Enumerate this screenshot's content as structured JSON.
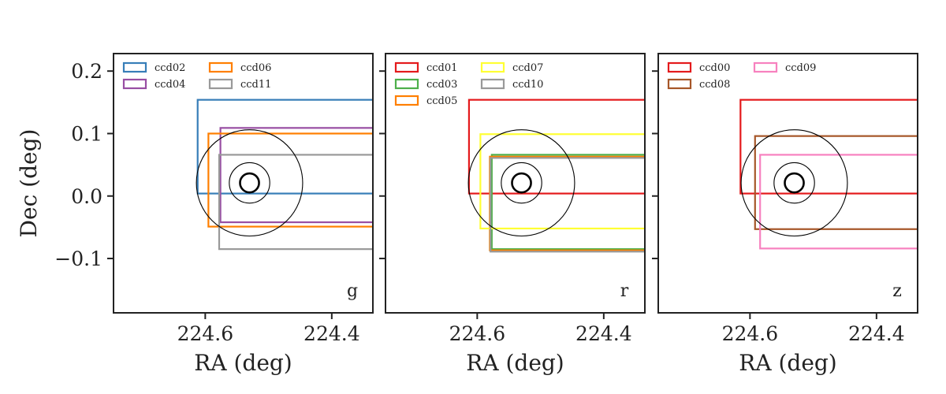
{
  "chart_data": [
    {
      "type": "footprint",
      "band": "g",
      "xlabel": "RA (deg)",
      "ylabel": "Dec (deg)",
      "xlim": [
        224.745,
        224.335
      ],
      "ylim": [
        -0.187,
        0.228
      ],
      "x_ticks": [
        224.6,
        224.4
      ],
      "x_tick_labels": [
        "224.6",
        "224.4"
      ],
      "y_ticks": [
        0.2,
        0.1,
        0.0,
        -0.1
      ],
      "y_tick_labels": [
        "0.2",
        "0.1",
        "0.0",
        "−0.1"
      ],
      "target": {
        "ra": 224.53,
        "dec": 0.021,
        "radii_deg": [
          0.015,
          0.032,
          0.084
        ]
      },
      "legend_position": "top-left",
      "ccds": [
        {
          "name": "ccd02",
          "color": "#377eb8",
          "ra_max": 224.612,
          "dec_min": 0.004,
          "dec_max": 0.154
        },
        {
          "name": "ccd04",
          "color": "#984ea3",
          "ra_max": 224.576,
          "dec_min": -0.042,
          "dec_max": 0.109
        },
        {
          "name": "ccd06",
          "color": "#ff7f00",
          "ra_max": 224.595,
          "dec_min": -0.049,
          "dec_max": 0.1
        },
        {
          "name": "ccd11",
          "color": "#999999",
          "ra_max": 224.578,
          "dec_min": -0.085,
          "dec_max": 0.066
        }
      ]
    },
    {
      "type": "footprint",
      "band": "r",
      "xlabel": "RA (deg)",
      "ylabel": "",
      "xlim": [
        224.745,
        224.335
      ],
      "ylim": [
        -0.187,
        0.228
      ],
      "x_ticks": [
        224.6,
        224.4
      ],
      "x_tick_labels": [
        "224.6",
        "224.4"
      ],
      "y_ticks": [
        0.2,
        0.1,
        0.0,
        -0.1
      ],
      "y_tick_labels": [],
      "target": {
        "ra": 224.53,
        "dec": 0.021,
        "radii_deg": [
          0.015,
          0.032,
          0.084
        ]
      },
      "legend_position": "top-left",
      "ccds": [
        {
          "name": "ccd01",
          "color": "#e41a1c",
          "ra_max": 224.613,
          "dec_min": 0.004,
          "dec_max": 0.154
        },
        {
          "name": "ccd03",
          "color": "#4daf4a",
          "ra_max": 224.577,
          "dec_min": -0.085,
          "dec_max": 0.066
        },
        {
          "name": "ccd05",
          "color": "#ff7f00",
          "ra_max": 224.58,
          "dec_min": -0.087,
          "dec_max": 0.063
        },
        {
          "name": "ccd07",
          "color": "#ffff33",
          "ra_max": 224.595,
          "dec_min": -0.052,
          "dec_max": 0.099
        },
        {
          "name": "ccd10",
          "color": "#999999",
          "ra_max": 224.579,
          "dec_min": -0.089,
          "dec_max": 0.061
        }
      ]
    },
    {
      "type": "footprint",
      "band": "z",
      "xlabel": "RA (deg)",
      "ylabel": "",
      "xlim": [
        224.745,
        224.335
      ],
      "ylim": [
        -0.187,
        0.228
      ],
      "x_ticks": [
        224.6,
        224.4
      ],
      "x_tick_labels": [
        "224.6",
        "224.4"
      ],
      "y_ticks": [
        0.2,
        0.1,
        0.0,
        -0.1
      ],
      "y_tick_labels": [],
      "target": {
        "ra": 224.53,
        "dec": 0.021,
        "radii_deg": [
          0.015,
          0.032,
          0.084
        ]
      },
      "legend_position": "top-left",
      "ccds": [
        {
          "name": "ccd00",
          "color": "#e41a1c",
          "ra_max": 224.615,
          "dec_min": 0.004,
          "dec_max": 0.154
        },
        {
          "name": "ccd08",
          "color": "#a65628",
          "ra_max": 224.592,
          "dec_min": -0.053,
          "dec_max": 0.096
        },
        {
          "name": "ccd09",
          "color": "#f781bf",
          "ra_max": 224.584,
          "dec_min": -0.084,
          "dec_max": 0.066
        }
      ]
    }
  ]
}
